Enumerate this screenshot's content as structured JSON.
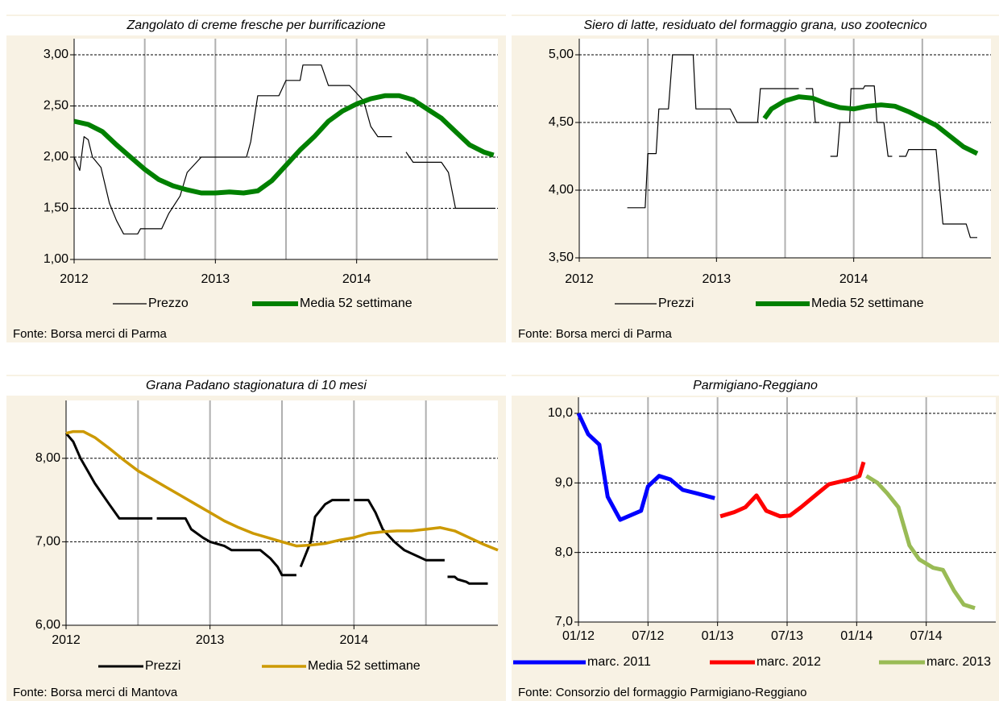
{
  "chart_data": [
    {
      "type": "line",
      "title": "Zangolato di creme fresche per burrificazione",
      "source": "Fonte: Borsa merci di Parma",
      "xlim": [
        2012,
        2015
      ],
      "xticks": [
        2012,
        2013,
        2014
      ],
      "ylim": [
        1,
        3
      ],
      "yticks": [
        {
          "value": 1,
          "label": "1,00"
        },
        {
          "value": 1.5,
          "label": "1,50"
        },
        {
          "value": 2,
          "label": "2,00"
        },
        {
          "value": 2.5,
          "label": "2,50"
        },
        {
          "value": 3,
          "label": "3,00"
        }
      ],
      "grid": true,
      "series": [
        {
          "name": "Prezzo",
          "color": "#000000",
          "x": [
            2012.0,
            2012.04,
            2012.07,
            2012.1,
            2012.13,
            2012.19,
            2012.25,
            2012.3,
            2012.35,
            2012.45,
            2012.47,
            2012.62,
            2012.67,
            2012.75,
            2012.8,
            2012.9,
            2013.0,
            2013.22,
            2013.25,
            2013.3,
            2013.45,
            2013.5,
            2013.6,
            2013.62,
            2013.75,
            2013.8,
            2013.95,
            2014.05,
            2014.1,
            2014.15,
            2014.25,
            2014.3,
            2014.35,
            2014.4,
            2014.6,
            2014.65,
            2014.7,
            2014.98
          ],
          "values": [
            2.0,
            1.87,
            2.2,
            2.17,
            2.0,
            1.9,
            1.55,
            1.38,
            1.25,
            1.25,
            1.3,
            1.3,
            1.45,
            1.62,
            1.85,
            2.0,
            2.0,
            2.0,
            2.15,
            2.6,
            2.6,
            2.75,
            2.75,
            2.9,
            2.9,
            2.7,
            2.7,
            2.55,
            2.3,
            2.2,
            2.2,
            null,
            2.05,
            1.95,
            1.95,
            1.85,
            1.5,
            1.5
          ]
        },
        {
          "name": "Media 52 settimane",
          "color": "#008000",
          "x": [
            2012.0,
            2012.1,
            2012.2,
            2012.3,
            2012.4,
            2012.5,
            2012.6,
            2012.7,
            2012.8,
            2012.9,
            2013.0,
            2013.1,
            2013.2,
            2013.3,
            2013.4,
            2013.5,
            2013.6,
            2013.7,
            2013.8,
            2013.9,
            2014.0,
            2014.1,
            2014.2,
            2014.3,
            2014.4,
            2014.5,
            2014.6,
            2014.7,
            2014.8,
            2014.9,
            2014.97
          ],
          "values": [
            2.35,
            2.32,
            2.25,
            2.12,
            2.0,
            1.88,
            1.78,
            1.72,
            1.68,
            1.65,
            1.65,
            1.66,
            1.65,
            1.67,
            1.77,
            1.92,
            2.07,
            2.2,
            2.35,
            2.45,
            2.52,
            2.57,
            2.6,
            2.6,
            2.56,
            2.47,
            2.38,
            2.25,
            2.12,
            2.05,
            2.02
          ]
        }
      ]
    },
    {
      "type": "line",
      "title": "Siero di latte, residuato del formaggio grana, uso zootecnico",
      "source": "Fonte: Borsa merci di Parma",
      "xlim": [
        2012,
        2015
      ],
      "xticks": [
        2012,
        2013,
        2014
      ],
      "ylim": [
        3.5,
        5
      ],
      "yticks": [
        {
          "value": 3.5,
          "label": "3,50"
        },
        {
          "value": 4,
          "label": "4,00"
        },
        {
          "value": 4.5,
          "label": "4,50"
        },
        {
          "value": 5,
          "label": "5,00"
        }
      ],
      "grid": true,
      "series": [
        {
          "name": "Prezzi",
          "color": "#000000",
          "x": [
            2012.35,
            2012.48,
            2012.5,
            2012.56,
            2012.58,
            2012.65,
            2012.68,
            2012.83,
            2012.85,
            2013.1,
            2013.15,
            2013.3,
            2013.32,
            2013.6,
            2013.62,
            2013.65,
            2013.7,
            2013.72,
            2013.75,
            2013.8,
            2013.83,
            2013.88,
            2013.9,
            2013.97,
            2013.98,
            2014.07,
            2014.08,
            2014.15,
            2014.17,
            2014.22,
            2014.25,
            2014.28,
            2014.3,
            2014.33,
            2014.38,
            2014.4,
            2014.6,
            2014.65,
            2014.82,
            2014.85,
            2014.9
          ],
          "values": [
            3.87,
            3.87,
            4.27,
            4.27,
            4.6,
            4.6,
            5.0,
            5.0,
            4.6,
            4.6,
            4.5,
            4.5,
            4.75,
            4.75,
            null,
            4.75,
            4.75,
            4.5,
            4.5,
            null,
            4.25,
            4.25,
            4.5,
            4.5,
            4.75,
            4.75,
            4.77,
            4.77,
            4.5,
            4.5,
            4.25,
            4.25,
            null,
            4.25,
            4.25,
            4.3,
            4.3,
            3.75,
            3.75,
            3.65,
            3.65
          ]
        },
        {
          "name": "Media 52 settimane",
          "color": "#008000",
          "x": [
            2013.35,
            2013.4,
            2013.5,
            2013.6,
            2013.7,
            2013.8,
            2013.9,
            2014.0,
            2014.1,
            2014.2,
            2014.3,
            2014.4,
            2014.5,
            2014.6,
            2014.7,
            2014.8,
            2014.9
          ],
          "values": [
            4.53,
            4.6,
            4.66,
            4.69,
            4.68,
            4.64,
            4.61,
            4.6,
            4.62,
            4.63,
            4.62,
            4.58,
            4.53,
            4.48,
            4.4,
            4.32,
            4.27
          ]
        }
      ]
    },
    {
      "type": "line",
      "title": "Grana Padano stagionatura di 10 mesi",
      "source": "Fonte: Borsa merci di Mantova",
      "xlim": [
        2012,
        2015
      ],
      "xticks": [
        2012,
        2013,
        2014
      ],
      "ylim": [
        6,
        8.5
      ],
      "yticks": [
        {
          "value": 6,
          "label": "6,00"
        },
        {
          "value": 7,
          "label": "7,00"
        },
        {
          "value": 8,
          "label": "8,00"
        }
      ],
      "grid": true,
      "series": [
        {
          "name": "Prezzi",
          "color": "#000000",
          "x": [
            2012.0,
            2012.05,
            2012.1,
            2012.15,
            2012.2,
            2012.3,
            2012.37,
            2012.6,
            2012.61,
            2012.63,
            2012.83,
            2012.87,
            2012.95,
            2013.0,
            2013.1,
            2013.15,
            2013.35,
            2013.42,
            2013.47,
            2013.5,
            2013.6,
            2013.61,
            2013.63,
            2013.7,
            2013.73,
            2013.8,
            2013.85,
            2013.97,
            2013.98,
            2014.0,
            2014.1,
            2014.15,
            2014.2,
            2014.28,
            2014.35,
            2014.45,
            2014.5,
            2014.63,
            2014.64,
            2014.65,
            2014.7,
            2014.72,
            2014.78,
            2014.8,
            2014.93
          ],
          "values": [
            8.3,
            8.2,
            8.0,
            7.85,
            7.7,
            7.45,
            7.28,
            7.28,
            null,
            7.28,
            7.28,
            7.15,
            7.05,
            7.0,
            6.95,
            6.9,
            6.9,
            6.8,
            6.7,
            6.6,
            6.6,
            null,
            6.7,
            7.0,
            7.3,
            7.45,
            7.5,
            7.5,
            null,
            7.5,
            7.5,
            7.35,
            7.15,
            7.0,
            6.9,
            6.82,
            6.78,
            6.78,
            null,
            6.58,
            6.58,
            6.55,
            6.52,
            6.5,
            6.5
          ]
        },
        {
          "name": "Media 52 settimane",
          "color": "#cc9900",
          "x": [
            2012.0,
            2012.05,
            2012.12,
            2012.2,
            2012.3,
            2012.4,
            2012.5,
            2012.6,
            2012.7,
            2012.8,
            2012.9,
            2013.0,
            2013.1,
            2013.2,
            2013.3,
            2013.4,
            2013.5,
            2013.6,
            2013.7,
            2013.8,
            2013.9,
            2014.0,
            2014.1,
            2014.2,
            2014.3,
            2014.4,
            2014.5,
            2014.6,
            2014.7,
            2014.8,
            2014.9,
            2015.0
          ],
          "values": [
            8.3,
            8.32,
            8.32,
            8.25,
            8.12,
            7.98,
            7.85,
            7.75,
            7.65,
            7.55,
            7.45,
            7.35,
            7.25,
            7.17,
            7.1,
            7.05,
            7.0,
            6.95,
            6.96,
            6.98,
            7.02,
            7.05,
            7.1,
            7.12,
            7.13,
            7.13,
            7.15,
            7.17,
            7.13,
            7.05,
            6.97,
            6.9
          ]
        }
      ]
    },
    {
      "type": "line",
      "title": "Parmigiano-Reggiano",
      "source": "Fonte: Consorzio del formaggio Parmigiano-Reggiano",
      "xlim": [
        2012,
        2015
      ],
      "xticks": [
        {
          "value": 2012,
          "label": "01/12"
        },
        {
          "value": 2012.5,
          "label": "07/12"
        },
        {
          "value": 2013,
          "label": "01/13"
        },
        {
          "value": 2013.5,
          "label": "07/13"
        },
        {
          "value": 2014,
          "label": "01/14"
        },
        {
          "value": 2014.5,
          "label": "07/14"
        }
      ],
      "ylim": [
        7,
        10
      ],
      "yticks": [
        {
          "value": 7,
          "label": "7,0"
        },
        {
          "value": 8,
          "label": "8,0"
        },
        {
          "value": 9,
          "label": "9,0"
        },
        {
          "value": 10,
          "label": "10,0"
        }
      ],
      "grid": true,
      "series": [
        {
          "name": "marc. 2011",
          "color": "#0000ff",
          "x": [
            2012.0,
            2012.07,
            2012.15,
            2012.21,
            2012.3,
            2012.45,
            2012.5,
            2012.58,
            2012.66,
            2012.75,
            2012.85,
            2012.98
          ],
          "values": [
            10.0,
            9.7,
            9.55,
            8.8,
            8.47,
            8.6,
            8.95,
            9.1,
            9.05,
            8.9,
            8.85,
            8.78
          ]
        },
        {
          "name": "marc. 2012",
          "color": "#ff0000",
          "x": [
            2013.02,
            2013.12,
            2013.2,
            2013.28,
            2013.35,
            2013.45,
            2013.52,
            2013.6,
            2013.72,
            2013.8,
            2013.95,
            2014.02,
            2014.05
          ],
          "values": [
            8.52,
            8.58,
            8.65,
            8.82,
            8.6,
            8.52,
            8.53,
            8.65,
            8.85,
            8.98,
            9.05,
            9.1,
            9.3
          ]
        },
        {
          "name": "marc. 2013",
          "color": "#99bb55",
          "x": [
            2014.07,
            2014.15,
            2014.22,
            2014.3,
            2014.38,
            2014.45,
            2014.55,
            2014.62,
            2014.7,
            2014.77,
            2014.85
          ],
          "values": [
            9.1,
            9.0,
            8.85,
            8.65,
            8.1,
            7.9,
            7.78,
            7.75,
            7.45,
            7.25,
            7.2
          ]
        }
      ]
    }
  ]
}
